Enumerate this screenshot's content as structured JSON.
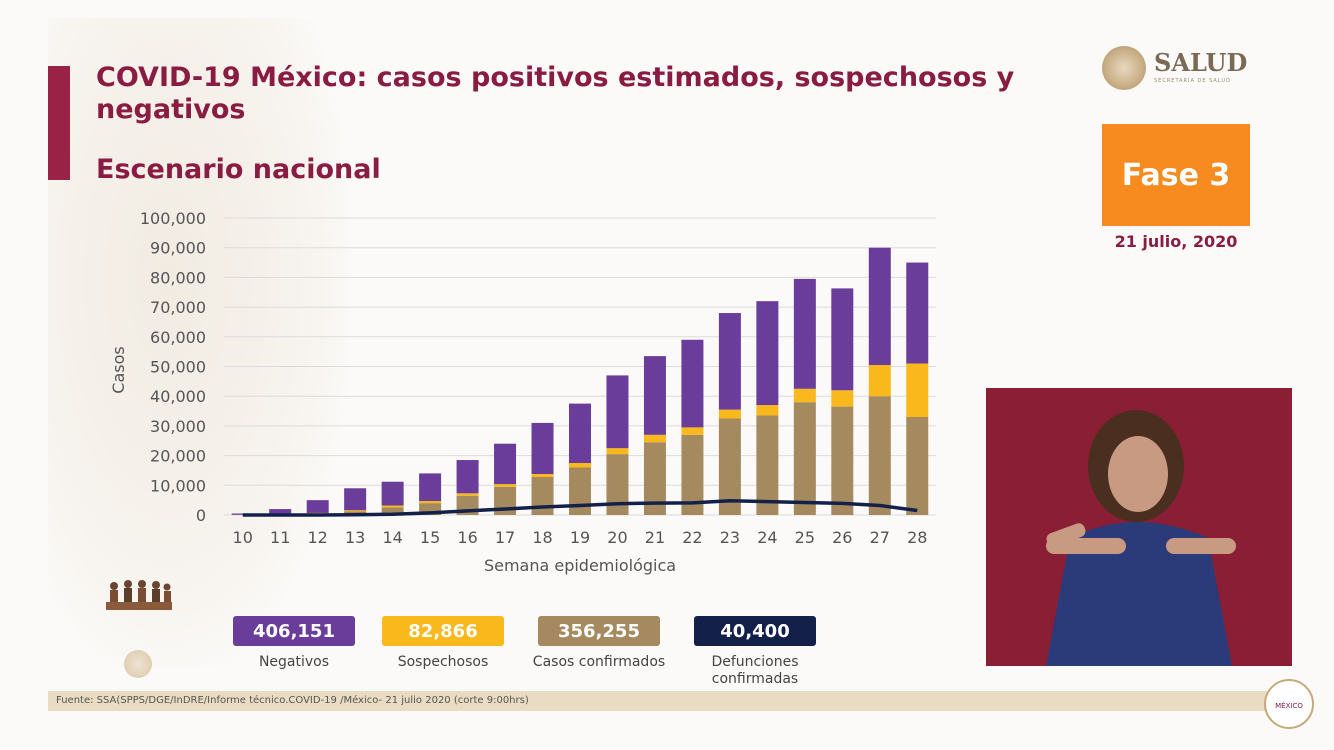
{
  "slide": {
    "title": "COVID-19 México: casos positivos estimados, sospechosos y negativos",
    "subtitle": "Escenario nacional",
    "logo_text": "SALUD",
    "logo_subtext": "SECRETARÍA DE SALUD",
    "phase_label": "Fase 3",
    "date": "21 julio, 2020",
    "footer": "Fuente: SSA(SPPS/DGE/InDRE/Informe técnico.COVID-19 /México- 21 julio 2020 (corte 9:00hrs)",
    "badge_text": "MÉXICO"
  },
  "legend": [
    {
      "value": "406,151",
      "label": "Negativos",
      "color": "#6a3d9a"
    },
    {
      "value": "82,866",
      "label": "Sospechosos",
      "color": "#f9b81b"
    },
    {
      "value": "356,255",
      "label": "Casos confirmados",
      "color": "#a58a5f"
    },
    {
      "value": "40,400",
      "label": "Defunciones confirmadas",
      "color": "#13214a"
    }
  ],
  "chart_data": {
    "type": "bar",
    "xlabel": "Semana epidemiológica",
    "ylabel": "Casos",
    "ylim": [
      0,
      100000
    ],
    "y_ticks": [
      "0",
      "10,000",
      "20,000",
      "30,000",
      "40,000",
      "50,000",
      "60,000",
      "70,000",
      "80,000",
      "90,000",
      "100,000"
    ],
    "categories": [
      "10",
      "11",
      "12",
      "13",
      "14",
      "15",
      "16",
      "17",
      "18",
      "19",
      "20",
      "21",
      "22",
      "23",
      "24",
      "25",
      "26",
      "27",
      "28"
    ],
    "grid": true,
    "stacked": true,
    "series": [
      {
        "name": "Casos confirmados",
        "color": "#a58a5f",
        "values": [
          50,
          150,
          500,
          1200,
          2600,
          4000,
          6500,
          9500,
          12800,
          16000,
          20500,
          24500,
          27000,
          32500,
          33500,
          38000,
          36500,
          40000,
          33000
        ]
      },
      {
        "name": "Sospechosos",
        "color": "#f9b81b",
        "values": [
          30,
          100,
          200,
          400,
          600,
          700,
          800,
          900,
          1000,
          1500,
          2000,
          2500,
          2500,
          3000,
          3500,
          4500,
          5500,
          10500,
          18000
        ]
      },
      {
        "name": "Negativos",
        "color": "#6a3d9a",
        "values": [
          420,
          1750,
          4300,
          7400,
          8000,
          9300,
          11200,
          13600,
          17200,
          20000,
          24500,
          26500,
          29500,
          32500,
          35000,
          37000,
          34300,
          39500,
          34000
        ]
      },
      {
        "name": "Defunciones confirmadas",
        "color": "#13214a",
        "type": "line",
        "values": [
          0,
          5,
          20,
          80,
          250,
          700,
          1400,
          2000,
          2700,
          3200,
          3800,
          4000,
          4100,
          4800,
          4500,
          4200,
          3900,
          3200,
          1500
        ]
      }
    ]
  }
}
